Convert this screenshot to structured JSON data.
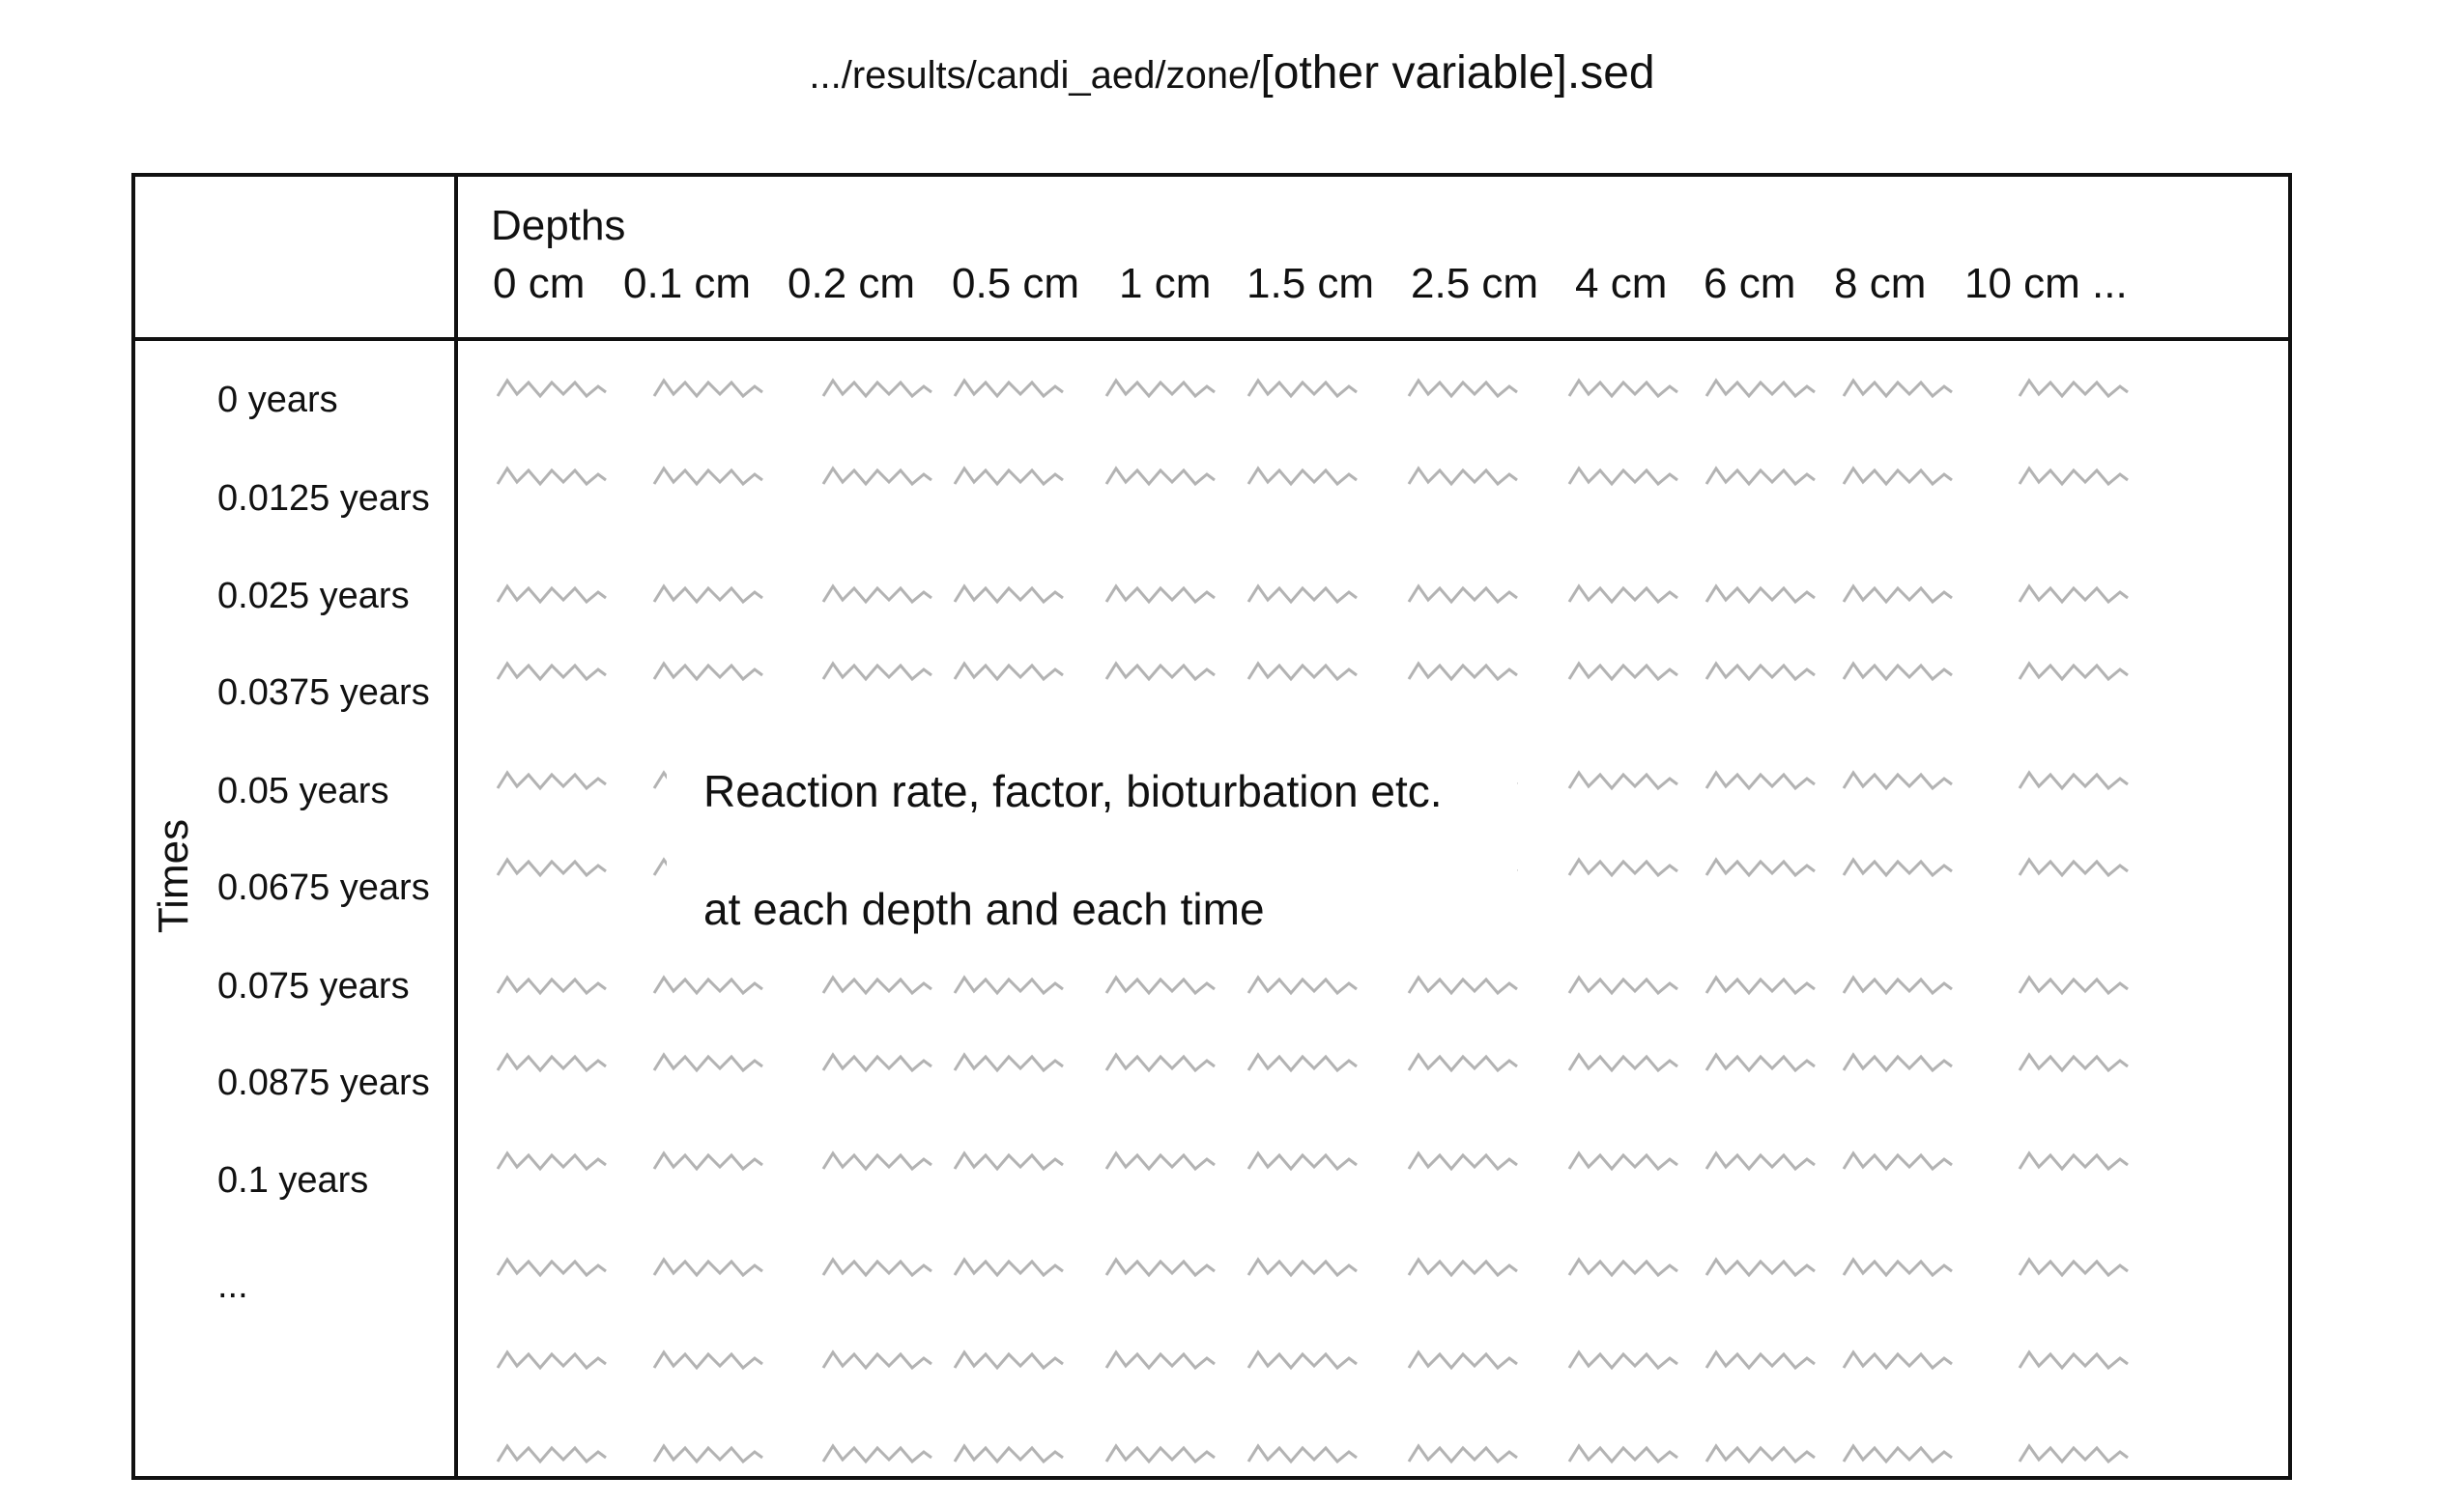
{
  "title": {
    "path": ".../results/candi_aed/zone/",
    "variable": "[other variable].sed"
  },
  "table": {
    "depths_title": "Depths",
    "depths": [
      "0 cm",
      "0.1 cm",
      "0.2 cm",
      "0.5 cm",
      "1 cm",
      "1.5 cm",
      "2.5 cm",
      "4 cm",
      "6 cm",
      "8 cm",
      "10 cm ..."
    ],
    "times_title": "Times",
    "times": [
      "0 years",
      "0.0125 years",
      "0.025 years",
      "0.0375 years",
      "0.05 years",
      "0.0675 years",
      "0.075 years",
      "0.0875 years",
      "0.1 years",
      "...",
      "",
      ""
    ],
    "value_glyph_color": "#b3b3b3",
    "border_color": "#111111"
  },
  "annotation": {
    "line1": "Reaction rate, factor, bioturbation etc.",
    "line2": "at each depth and each time"
  }
}
